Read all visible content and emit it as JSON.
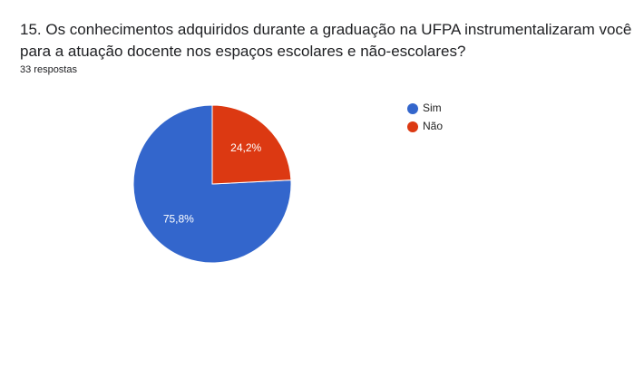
{
  "chart_data": {
    "type": "pie",
    "title": "15. Os conhecimentos adquiridos durante a graduação na UFPA instrumentalizaram você para a atuação docente nos espaços escolares e não-escolares?",
    "subtitle": "33 respostas",
    "categories": [
      "Sim",
      "Não"
    ],
    "values": [
      75.8,
      24.2
    ],
    "value_labels": [
      "75,8%",
      "24,2%"
    ],
    "colors": [
      "#3366cc",
      "#dc3912"
    ],
    "legend": "right"
  }
}
